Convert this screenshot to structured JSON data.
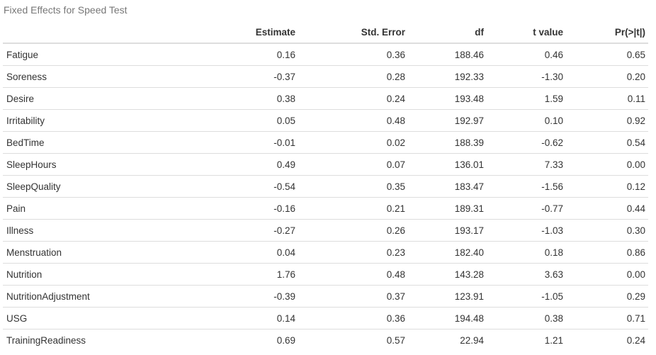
{
  "caption": "Fixed Effects for Speed Test",
  "columns": [
    "",
    "Estimate",
    "Std. Error",
    "df",
    "t value",
    "Pr(>|t|)"
  ],
  "rows": [
    [
      "Fatigue",
      "0.16",
      "0.36",
      "188.46",
      "0.46",
      "0.65"
    ],
    [
      "Soreness",
      "-0.37",
      "0.28",
      "192.33",
      "-1.30",
      "0.20"
    ],
    [
      "Desire",
      "0.38",
      "0.24",
      "193.48",
      "1.59",
      "0.11"
    ],
    [
      "Irritability",
      "0.05",
      "0.48",
      "192.97",
      "0.10",
      "0.92"
    ],
    [
      "BedTime",
      "-0.01",
      "0.02",
      "188.39",
      "-0.62",
      "0.54"
    ],
    [
      "SleepHours",
      "0.49",
      "0.07",
      "136.01",
      "7.33",
      "0.00"
    ],
    [
      "SleepQuality",
      "-0.54",
      "0.35",
      "183.47",
      "-1.56",
      "0.12"
    ],
    [
      "Pain",
      "-0.16",
      "0.21",
      "189.31",
      "-0.77",
      "0.44"
    ],
    [
      "Illness",
      "-0.27",
      "0.26",
      "193.17",
      "-1.03",
      "0.30"
    ],
    [
      "Menstruation",
      "0.04",
      "0.23",
      "182.40",
      "0.18",
      "0.86"
    ],
    [
      "Nutrition",
      "1.76",
      "0.48",
      "143.28",
      "3.63",
      "0.00"
    ],
    [
      "NutritionAdjustment",
      "-0.39",
      "0.37",
      "123.91",
      "-1.05",
      "0.29"
    ],
    [
      "USG",
      "0.14",
      "0.36",
      "194.48",
      "0.38",
      "0.71"
    ],
    [
      "TrainingReadiness",
      "0.69",
      "0.57",
      "22.94",
      "1.21",
      "0.24"
    ]
  ]
}
